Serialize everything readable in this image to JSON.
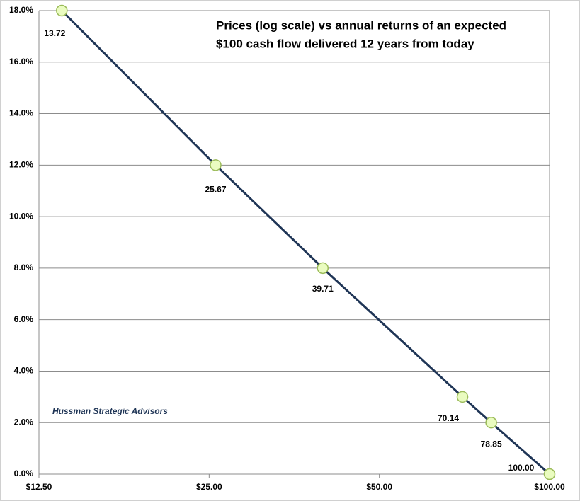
{
  "chart_data": {
    "type": "line",
    "title": [
      "Prices (log scale) vs annual returns of an expected",
      "$100 cash flow delivered 12 years from today"
    ],
    "annotation": "Hussman Strategic Advisors",
    "x": [
      13.72,
      25.67,
      39.71,
      70.14,
      78.85,
      100
    ],
    "values": [
      18,
      12,
      8,
      3,
      2,
      0
    ],
    "point_labels": [
      "13.72",
      "25.67",
      "39.71",
      "70.14",
      "78.85",
      "100.00"
    ],
    "color": "#1f3556",
    "marker_fill": "#eafcc0",
    "marker_stroke": "#9bbb59",
    "xscale": "log",
    "xlim": [
      12.5,
      100
    ],
    "xticks": [
      {
        "value": 12.5,
        "label": "$12.50"
      },
      {
        "value": 25,
        "label": "$25.00"
      },
      {
        "value": 50,
        "label": "$50.00"
      },
      {
        "value": 100,
        "label": "$100.00"
      }
    ],
    "ylim": [
      0,
      18
    ],
    "yticks": [
      {
        "value": 0,
        "label": "0.0%"
      },
      {
        "value": 2,
        "label": "2.0%"
      },
      {
        "value": 4,
        "label": "4.0%"
      },
      {
        "value": 6,
        "label": "6.0%"
      },
      {
        "value": 8,
        "label": "8.0%"
      },
      {
        "value": 10,
        "label": "10.0%"
      },
      {
        "value": 12,
        "label": "12.0%"
      },
      {
        "value": 14,
        "label": "14.0%"
      },
      {
        "value": 16,
        "label": "16.0%"
      },
      {
        "value": 18,
        "label": "18.0%"
      }
    ],
    "grid": true
  }
}
